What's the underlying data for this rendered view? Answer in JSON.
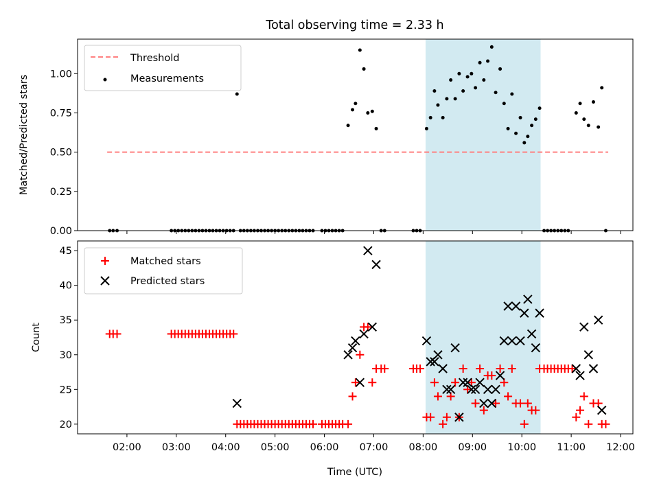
{
  "title": "Total observing time = 2.33 h",
  "shade_color": "#add8e6",
  "chart_data": [
    {
      "type": "scatter",
      "ylabel": "Matched/Predicted stars",
      "ylim": [
        0,
        1.22
      ],
      "xlim": [
        1.0,
        12.25
      ],
      "x_unit": "hours UTC",
      "yticks": [
        0.0,
        0.25,
        0.5,
        0.75,
        1.0
      ],
      "ytick_labels": [
        "0.00",
        "0.25",
        "0.50",
        "0.75",
        "1.00"
      ],
      "highlight_span": [
        8.05,
        10.38
      ],
      "legend": {
        "placement": "upper left",
        "entries": [
          "Threshold",
          "Measurements"
        ]
      },
      "threshold": {
        "name": "Threshold",
        "x": [
          1.6,
          11.75
        ],
        "y": 0.5,
        "color": "#ff8080",
        "style": "dashed"
      },
      "series": [
        {
          "name": "Measurements",
          "color": "#000000",
          "marker": "dot",
          "points": [
            [
              1.65,
              0
            ],
            [
              1.72,
              0
            ],
            [
              1.8,
              0
            ],
            [
              2.9,
              0
            ],
            [
              2.97,
              0
            ],
            [
              3.04,
              0
            ],
            [
              3.11,
              0
            ],
            [
              3.18,
              0
            ],
            [
              3.25,
              0
            ],
            [
              3.32,
              0
            ],
            [
              3.39,
              0
            ],
            [
              3.46,
              0
            ],
            [
              3.53,
              0
            ],
            [
              3.6,
              0
            ],
            [
              3.67,
              0
            ],
            [
              3.74,
              0
            ],
            [
              3.81,
              0
            ],
            [
              3.88,
              0
            ],
            [
              3.95,
              0
            ],
            [
              4.02,
              0
            ],
            [
              4.09,
              0
            ],
            [
              4.16,
              0
            ],
            [
              4.23,
              0.87
            ],
            [
              4.3,
              0
            ],
            [
              4.37,
              0
            ],
            [
              4.44,
              0
            ],
            [
              4.51,
              0
            ],
            [
              4.58,
              0
            ],
            [
              4.65,
              0
            ],
            [
              4.72,
              0
            ],
            [
              4.79,
              0
            ],
            [
              4.86,
              0
            ],
            [
              4.93,
              0
            ],
            [
              5.0,
              0
            ],
            [
              5.07,
              0
            ],
            [
              5.14,
              0
            ],
            [
              5.21,
              0
            ],
            [
              5.28,
              0
            ],
            [
              5.35,
              0
            ],
            [
              5.42,
              0
            ],
            [
              5.49,
              0
            ],
            [
              5.56,
              0
            ],
            [
              5.63,
              0
            ],
            [
              5.7,
              0
            ],
            [
              5.77,
              0
            ],
            [
              5.95,
              0
            ],
            [
              6.02,
              0
            ],
            [
              6.09,
              0
            ],
            [
              6.16,
              0
            ],
            [
              6.23,
              0
            ],
            [
              6.3,
              0
            ],
            [
              6.37,
              0
            ],
            [
              6.48,
              0.67
            ],
            [
              6.57,
              0.77
            ],
            [
              6.63,
              0.81
            ],
            [
              6.72,
              1.15
            ],
            [
              6.8,
              1.03
            ],
            [
              6.88,
              0.75
            ],
            [
              6.97,
              0.76
            ],
            [
              7.05,
              0.65
            ],
            [
              7.15,
              0
            ],
            [
              7.22,
              0
            ],
            [
              7.8,
              0
            ],
            [
              7.87,
              0
            ],
            [
              7.94,
              0
            ],
            [
              8.07,
              0.65
            ],
            [
              8.15,
              0.72
            ],
            [
              8.23,
              0.89
            ],
            [
              8.3,
              0.8
            ],
            [
              8.4,
              0.72
            ],
            [
              8.48,
              0.84
            ],
            [
              8.56,
              0.96
            ],
            [
              8.65,
              0.84
            ],
            [
              8.73,
              1.0
            ],
            [
              8.81,
              0.89
            ],
            [
              8.9,
              0.98
            ],
            [
              8.98,
              1.0
            ],
            [
              9.06,
              0.91
            ],
            [
              9.15,
              1.07
            ],
            [
              9.23,
              0.96
            ],
            [
              9.31,
              1.08
            ],
            [
              9.39,
              1.17
            ],
            [
              9.47,
              0.88
            ],
            [
              9.56,
              1.03
            ],
            [
              9.64,
              0.81
            ],
            [
              9.72,
              0.65
            ],
            [
              9.8,
              0.87
            ],
            [
              9.88,
              0.62
            ],
            [
              9.97,
              0.72
            ],
            [
              10.05,
              0.56
            ],
            [
              10.12,
              0.6
            ],
            [
              10.2,
              0.67
            ],
            [
              10.28,
              0.71
            ],
            [
              10.36,
              0.78
            ],
            [
              10.45,
              0
            ],
            [
              10.52,
              0
            ],
            [
              10.59,
              0
            ],
            [
              10.66,
              0
            ],
            [
              10.73,
              0
            ],
            [
              10.8,
              0
            ],
            [
              10.87,
              0
            ],
            [
              10.94,
              0
            ],
            [
              11.1,
              0.75
            ],
            [
              11.18,
              0.81
            ],
            [
              11.26,
              0.71
            ],
            [
              11.35,
              0.67
            ],
            [
              11.45,
              0.82
            ],
            [
              11.55,
              0.66
            ],
            [
              11.62,
              0.91
            ],
            [
              11.7,
              0
            ]
          ]
        }
      ]
    },
    {
      "type": "scatter",
      "xlabel": "Time (UTC)",
      "ylabel": "Count",
      "ylim": [
        18.6,
        46.4
      ],
      "xlim": [
        1.0,
        12.25
      ],
      "yticks": [
        20,
        25,
        30,
        35,
        40,
        45
      ],
      "ytick_labels": [
        "20",
        "25",
        "30",
        "35",
        "40",
        "45"
      ],
      "xticks": [
        2,
        3,
        4,
        5,
        6,
        7,
        8,
        9,
        10,
        11,
        12
      ],
      "xtick_labels": [
        "02:00",
        "03:00",
        "04:00",
        "05:00",
        "06:00",
        "07:00",
        "08:00",
        "09:00",
        "10:00",
        "11:00",
        "12:00"
      ],
      "highlight_span": [
        8.05,
        10.38
      ],
      "legend": {
        "placement": "upper left",
        "entries": [
          "Matched stars",
          "Predicted stars"
        ]
      },
      "series": [
        {
          "name": "Matched stars",
          "color": "#ff0000",
          "marker": "plus",
          "points": [
            [
              1.65,
              33
            ],
            [
              1.72,
              33
            ],
            [
              1.8,
              33
            ],
            [
              2.9,
              33
            ],
            [
              2.97,
              33
            ],
            [
              3.04,
              33
            ],
            [
              3.11,
              33
            ],
            [
              3.18,
              33
            ],
            [
              3.25,
              33
            ],
            [
              3.32,
              33
            ],
            [
              3.39,
              33
            ],
            [
              3.46,
              33
            ],
            [
              3.53,
              33
            ],
            [
              3.6,
              33
            ],
            [
              3.67,
              33
            ],
            [
              3.74,
              33
            ],
            [
              3.81,
              33
            ],
            [
              3.88,
              33
            ],
            [
              3.95,
              33
            ],
            [
              4.02,
              33
            ],
            [
              4.09,
              33
            ],
            [
              4.16,
              33
            ],
            [
              4.23,
              20
            ],
            [
              4.3,
              20
            ],
            [
              4.37,
              20
            ],
            [
              4.44,
              20
            ],
            [
              4.51,
              20
            ],
            [
              4.58,
              20
            ],
            [
              4.65,
              20
            ],
            [
              4.72,
              20
            ],
            [
              4.79,
              20
            ],
            [
              4.86,
              20
            ],
            [
              4.93,
              20
            ],
            [
              5.0,
              20
            ],
            [
              5.07,
              20
            ],
            [
              5.14,
              20
            ],
            [
              5.21,
              20
            ],
            [
              5.28,
              20
            ],
            [
              5.35,
              20
            ],
            [
              5.42,
              20
            ],
            [
              5.49,
              20
            ],
            [
              5.56,
              20
            ],
            [
              5.63,
              20
            ],
            [
              5.7,
              20
            ],
            [
              5.77,
              20
            ],
            [
              5.95,
              20
            ],
            [
              6.02,
              20
            ],
            [
              6.09,
              20
            ],
            [
              6.16,
              20
            ],
            [
              6.23,
              20
            ],
            [
              6.3,
              20
            ],
            [
              6.37,
              20
            ],
            [
              6.48,
              20
            ],
            [
              6.57,
              24
            ],
            [
              6.63,
              26
            ],
            [
              6.72,
              30
            ],
            [
              6.8,
              34
            ],
            [
              6.88,
              34
            ],
            [
              6.97,
              26
            ],
            [
              7.05,
              28
            ],
            [
              7.15,
              28
            ],
            [
              7.22,
              28
            ],
            [
              7.8,
              28
            ],
            [
              7.87,
              28
            ],
            [
              7.94,
              28
            ],
            [
              8.07,
              21
            ],
            [
              8.15,
              21
            ],
            [
              8.23,
              26
            ],
            [
              8.3,
              24
            ],
            [
              8.4,
              20
            ],
            [
              8.48,
              21
            ],
            [
              8.56,
              24
            ],
            [
              8.65,
              26
            ],
            [
              8.73,
              21
            ],
            [
              8.81,
              28
            ],
            [
              8.9,
              25
            ],
            [
              8.98,
              26
            ],
            [
              9.06,
              23
            ],
            [
              9.15,
              28
            ],
            [
              9.23,
              22
            ],
            [
              9.31,
              27
            ],
            [
              9.39,
              27
            ],
            [
              9.47,
              23
            ],
            [
              9.56,
              28
            ],
            [
              9.64,
              26
            ],
            [
              9.72,
              24
            ],
            [
              9.8,
              28
            ],
            [
              9.88,
              23
            ],
            [
              9.97,
              23
            ],
            [
              10.05,
              20
            ],
            [
              10.12,
              23
            ],
            [
              10.2,
              22
            ],
            [
              10.28,
              22
            ],
            [
              10.36,
              28
            ],
            [
              10.45,
              28
            ],
            [
              10.52,
              28
            ],
            [
              10.59,
              28
            ],
            [
              10.66,
              28
            ],
            [
              10.73,
              28
            ],
            [
              10.8,
              28
            ],
            [
              10.87,
              28
            ],
            [
              10.94,
              28
            ],
            [
              11.02,
              28
            ],
            [
              11.1,
              21
            ],
            [
              11.18,
              22
            ],
            [
              11.26,
              24
            ],
            [
              11.35,
              20
            ],
            [
              11.45,
              23
            ],
            [
              11.55,
              23
            ],
            [
              11.62,
              20
            ],
            [
              11.7,
              20
            ]
          ]
        },
        {
          "name": "Predicted stars",
          "color": "#000000",
          "marker": "x",
          "points": [
            [
              4.23,
              23
            ],
            [
              6.48,
              30
            ],
            [
              6.57,
              31
            ],
            [
              6.63,
              32
            ],
            [
              6.72,
              26
            ],
            [
              6.8,
              33
            ],
            [
              6.88,
              45
            ],
            [
              6.97,
              34
            ],
            [
              7.05,
              43
            ],
            [
              8.07,
              32
            ],
            [
              8.15,
              29
            ],
            [
              8.23,
              29
            ],
            [
              8.3,
              30
            ],
            [
              8.4,
              28
            ],
            [
              8.48,
              25
            ],
            [
              8.56,
              25
            ],
            [
              8.65,
              31
            ],
            [
              8.73,
              21
            ],
            [
              8.81,
              26
            ],
            [
              8.9,
              26
            ],
            [
              8.98,
              25
            ],
            [
              9.06,
              25
            ],
            [
              9.15,
              26
            ],
            [
              9.23,
              23
            ],
            [
              9.31,
              25
            ],
            [
              9.39,
              23
            ],
            [
              9.47,
              25
            ],
            [
              9.56,
              27
            ],
            [
              9.64,
              32
            ],
            [
              9.72,
              37
            ],
            [
              9.8,
              32
            ],
            [
              9.88,
              37
            ],
            [
              9.97,
              32
            ],
            [
              10.05,
              36
            ],
            [
              10.12,
              38
            ],
            [
              10.2,
              33
            ],
            [
              10.28,
              31
            ],
            [
              10.36,
              36
            ],
            [
              11.1,
              28
            ],
            [
              11.18,
              27
            ],
            [
              11.26,
              34
            ],
            [
              11.35,
              30
            ],
            [
              11.45,
              28
            ],
            [
              11.55,
              35
            ],
            [
              11.62,
              22
            ]
          ]
        }
      ]
    }
  ]
}
